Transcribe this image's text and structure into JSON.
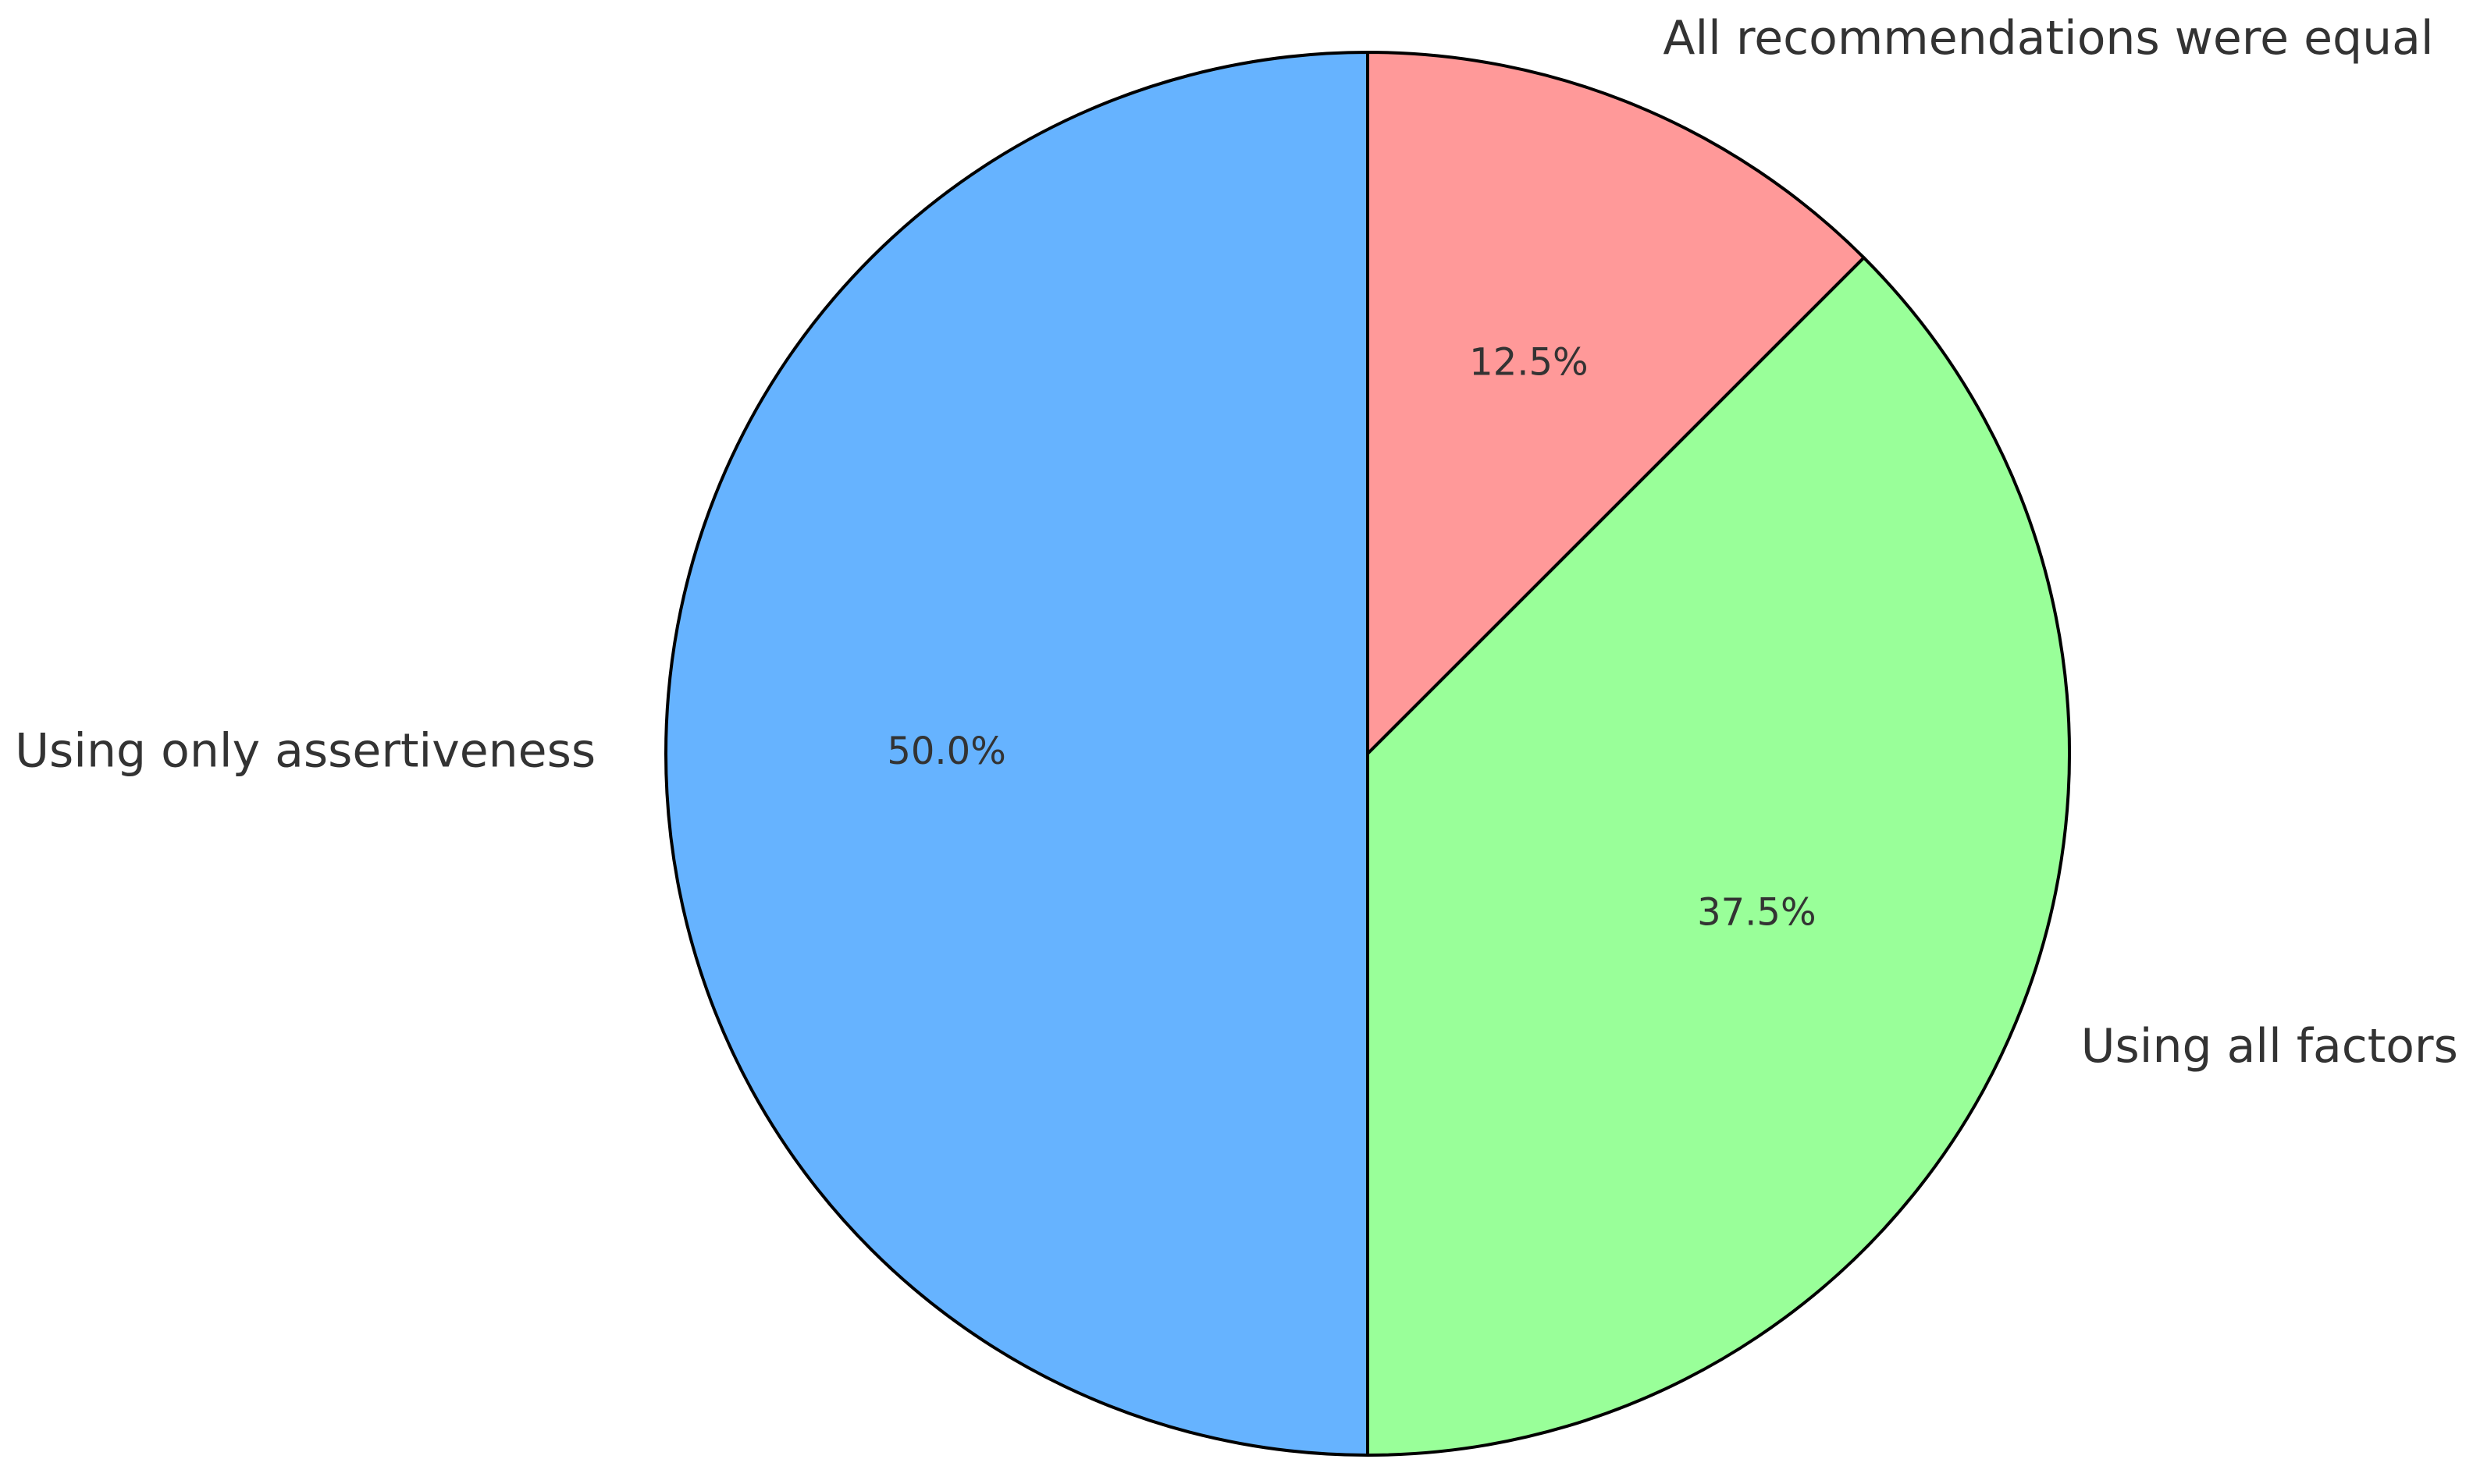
{
  "chart_data": {
    "type": "pie",
    "categories": [
      "All recommendations were equal",
      "Using all factors",
      "Using only assertiveness"
    ],
    "values": [
      12.5,
      37.5,
      50
    ],
    "value_labels": [
      "12.5%",
      "37.5%",
      "50.0%"
    ],
    "colors": [
      "#ff9999",
      "#99ff99",
      "#66b3ff"
    ]
  }
}
